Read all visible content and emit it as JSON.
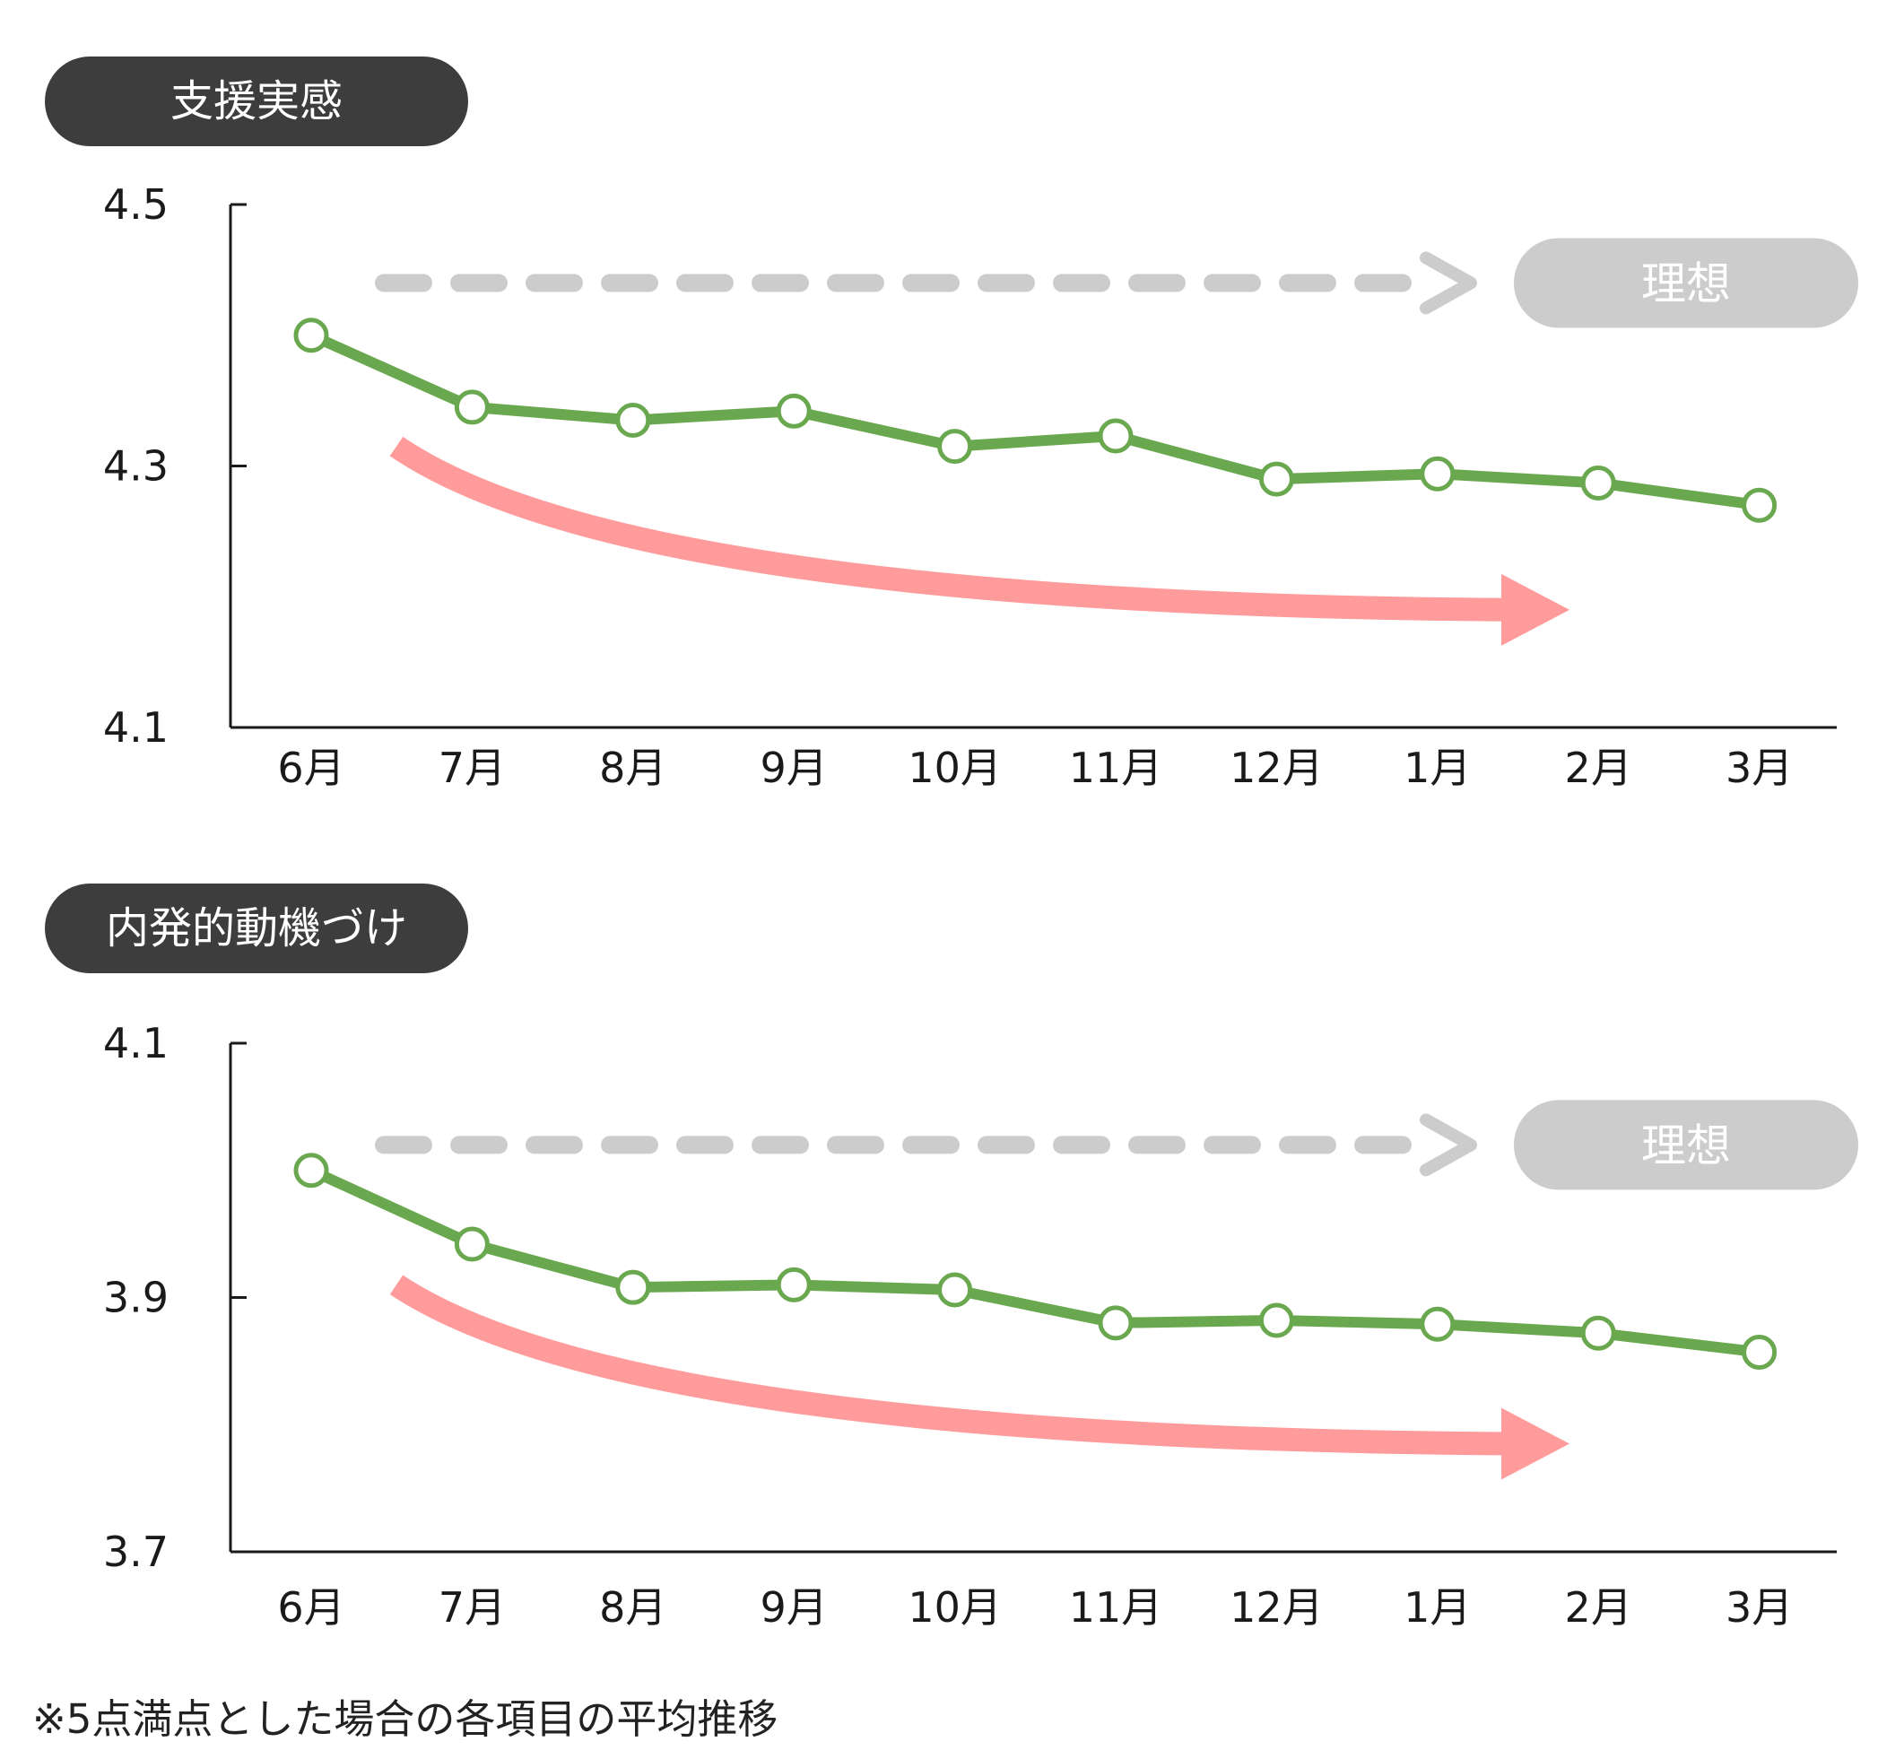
{
  "footnote": "※5点満点とした場合の各項目の平均推移",
  "ideal_label": "理想",
  "colors": {
    "series": "#6aa84f",
    "marker_fill": "#ffffff",
    "trend_arrow": "#ff9b9b",
    "ideal_arrow": "#cccccc",
    "pill_dark": "#3d3d3d",
    "pill_ideal": "#cccccc",
    "axis": "#1a1a1a"
  },
  "chart_data": [
    {
      "type": "line",
      "title": "支援実感",
      "categories": [
        "6月",
        "7月",
        "8月",
        "9月",
        "10月",
        "11月",
        "12月",
        "1月",
        "2月",
        "3月"
      ],
      "series": [
        {
          "values": [
            4.4,
            4.345,
            4.335,
            4.342,
            4.315,
            4.323,
            4.29,
            4.294,
            4.287,
            4.27
          ]
        }
      ],
      "yticks": [
        "4.5",
        "4.3",
        "4.1"
      ],
      "ylim": [
        4.1,
        4.5
      ],
      "ideal_level": 4.44,
      "trend": {
        "start": 4.315,
        "end": 4.19
      },
      "grid": false
    },
    {
      "type": "line",
      "title": "内発的動機づけ",
      "categories": [
        "6月",
        "7月",
        "8月",
        "9月",
        "10月",
        "11月",
        "12月",
        "1月",
        "2月",
        "3月"
      ],
      "series": [
        {
          "values": [
            4.0,
            3.942,
            3.908,
            3.91,
            3.906,
            3.88,
            3.882,
            3.879,
            3.872,
            3.857
          ]
        }
      ],
      "yticks": [
        "4.1",
        "3.9",
        "3.7"
      ],
      "ylim": [
        3.7,
        4.1
      ],
      "ideal_level": 4.02,
      "trend": {
        "start": 3.91,
        "end": 3.785
      },
      "grid": false
    }
  ]
}
